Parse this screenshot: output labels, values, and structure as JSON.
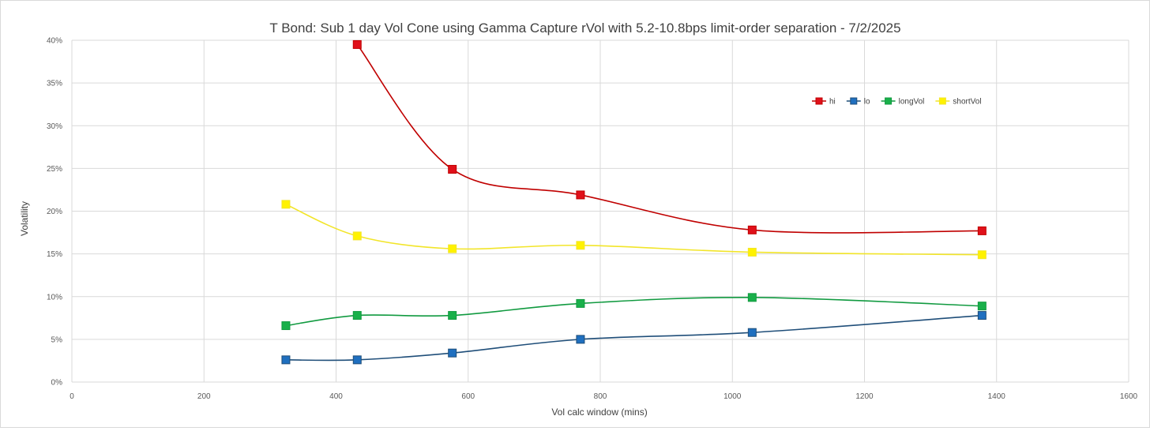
{
  "chart_data": {
    "type": "line",
    "title": "T Bond: Sub 1 day Vol Cone using Gamma Capture rVol with 5.2-10.8bps limit-order separation - 7/2/2025",
    "xlabel": "Vol calc window (mins)",
    "ylabel": "Volatility",
    "xlim": [
      0,
      1600
    ],
    "ylim": [
      0,
      0.4
    ],
    "x_ticks": [
      "0",
      "200",
      "400",
      "600",
      "800",
      "1000",
      "1200",
      "1400",
      "1600"
    ],
    "y_ticks": [
      "0%",
      "5%",
      "10%",
      "15%",
      "20%",
      "25%",
      "30%",
      "35%",
      "40%"
    ],
    "grid": true,
    "legend_position": "top-right",
    "x": [
      324,
      432,
      576,
      770,
      1030,
      1378
    ],
    "series": [
      {
        "name": "hi",
        "color": "#C00000",
        "marker_color": "#E0101A",
        "points": [
          [
            432,
            0.395
          ],
          [
            576,
            0.249
          ],
          [
            770,
            0.219
          ],
          [
            1030,
            0.178
          ],
          [
            1378,
            0.177
          ]
        ]
      },
      {
        "name": "lo",
        "color": "#1F4E79",
        "marker_color": "#1F6FBF",
        "points": [
          [
            324,
            0.026
          ],
          [
            432,
            0.026
          ],
          [
            576,
            0.034
          ],
          [
            770,
            0.05
          ],
          [
            1030,
            0.058
          ],
          [
            1378,
            0.078
          ]
        ]
      },
      {
        "name": "longVol",
        "color": "#119A40",
        "marker_color": "#19B04A",
        "points": [
          [
            324,
            0.066
          ],
          [
            432,
            0.078
          ],
          [
            576,
            0.078
          ],
          [
            770,
            0.092
          ],
          [
            1030,
            0.099
          ],
          [
            1378,
            0.089
          ]
        ]
      },
      {
        "name": "shortVol",
        "color": "#F2E52A",
        "marker_color": "#FFF200",
        "points": [
          [
            324,
            0.208
          ],
          [
            432,
            0.171
          ],
          [
            576,
            0.156
          ],
          [
            770,
            0.16
          ],
          [
            1030,
            0.152
          ],
          [
            1378,
            0.149
          ]
        ]
      }
    ]
  }
}
